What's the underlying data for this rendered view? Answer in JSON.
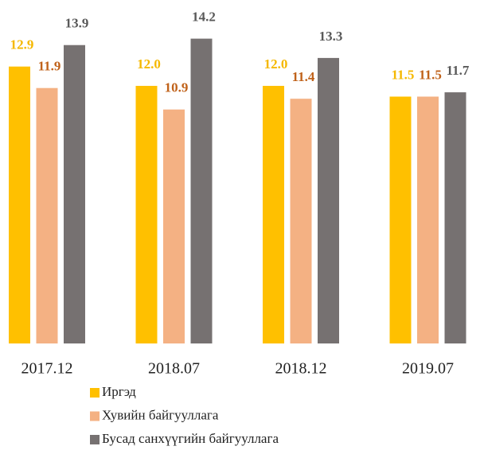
{
  "chart_data": {
    "type": "bar",
    "categories": [
      "2017.12",
      "2018.07",
      "2018.12",
      "2019.07"
    ],
    "series": [
      {
        "name": "Иргэд",
        "color": "#ffc000",
        "label_color": "#f5b800",
        "values": [
          12.9,
          12.0,
          12.0,
          11.5
        ],
        "value_labels": [
          "12.9",
          "12.0",
          "12.0",
          "11.5"
        ]
      },
      {
        "name": "Хувийн байгууллага",
        "color": "#f4b183",
        "label_color": "#c0621a",
        "values": [
          11.9,
          10.9,
          11.4,
          11.5
        ]
      },
      {
        "name": "Бусад санхүүгийн байгууллага",
        "color": "#767171",
        "label_color": "#595959",
        "values": [
          13.9,
          14.2,
          13.3,
          11.7
        ]
      }
    ],
    "ylim": [
      0,
      16
    ]
  }
}
